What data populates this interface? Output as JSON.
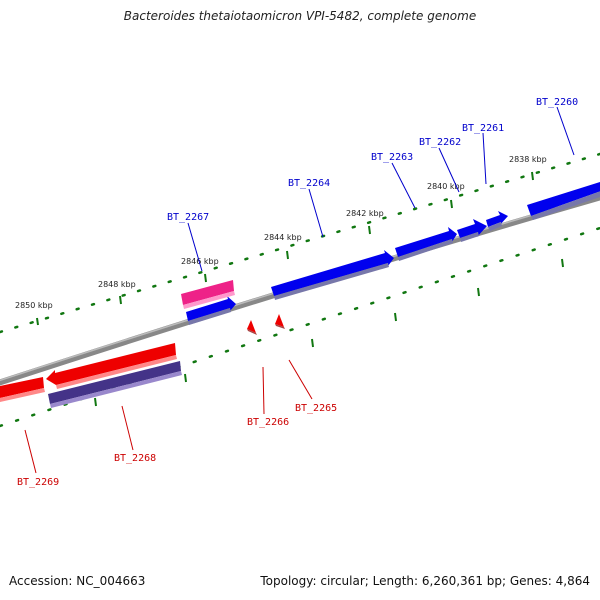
{
  "title": "Bacteroides thetaiotaomicron VPI-5482, complete genome",
  "accession": "Accession: NC_004663",
  "summary": "Topology: circular; Length: 6,260,361 bp; Genes: 4,864",
  "colors": {
    "forward_gene": "#0000ee",
    "reverse_gene": "#ee0000",
    "highlight_gene": "#ee2288",
    "reverse_alt_gene": "#443388",
    "backbone": "#888888",
    "tick": "#117711",
    "forward_label": "#0000cc",
    "reverse_label": "#cc0000"
  },
  "ruler_labels": [
    "2850 kbp",
    "2848 kbp",
    "2846 kbp",
    "2844 kbp",
    "2842 kbp",
    "2840 kbp",
    "2838 kbp"
  ],
  "genes": [
    {
      "name": "BT_2260",
      "strand": "forward"
    },
    {
      "name": "BT_2261",
      "strand": "forward"
    },
    {
      "name": "BT_2262",
      "strand": "forward"
    },
    {
      "name": "BT_2263",
      "strand": "forward"
    },
    {
      "name": "BT_2264",
      "strand": "forward"
    },
    {
      "name": "BT_2267",
      "strand": "forward"
    },
    {
      "name": "BT_2265",
      "strand": "reverse"
    },
    {
      "name": "BT_2266",
      "strand": "reverse"
    },
    {
      "name": "BT_2268",
      "strand": "reverse"
    },
    {
      "name": "BT_2269",
      "strand": "reverse"
    }
  ]
}
